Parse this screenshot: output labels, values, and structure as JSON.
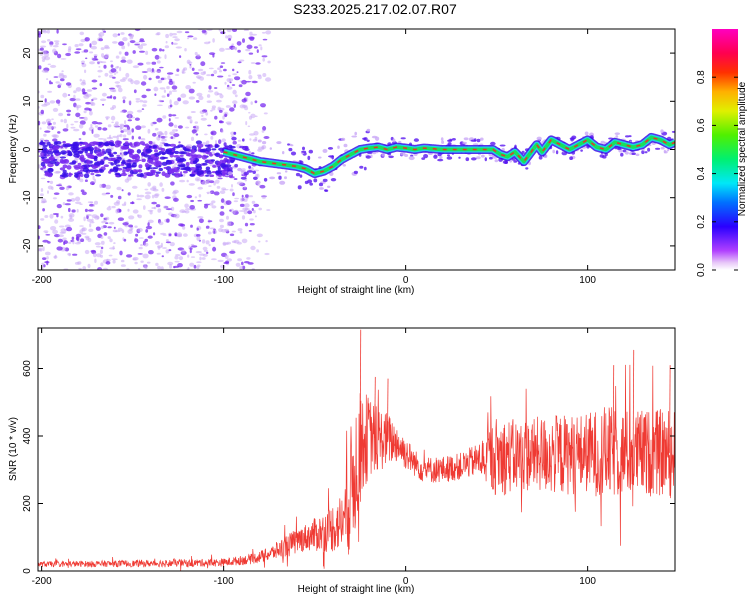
{
  "page": {
    "title": "S233.2025.217.02.07.R07"
  },
  "colors": {
    "snr_line": "#ef3a33",
    "ridge_core": "#e8312a",
    "ridge_mid": "#18e05a",
    "ridge_edge": "#1fd0e8",
    "speckle": "#7a2cf0",
    "speckle_light": "#c9a8f6"
  },
  "colorbar": {
    "label": "Normalized spectral amplitude",
    "ticks": [
      "0.0",
      "0.2",
      "0.4",
      "0.6",
      "0.8"
    ],
    "tick_values": [
      0.0,
      0.2,
      0.4,
      0.6,
      0.8
    ],
    "range": [
      0,
      1
    ],
    "colormap": "hsv (magenta-blue-cyan-green-yellow-red-pink)"
  },
  "chart_data": [
    {
      "type": "heatmap",
      "title": "S233.2025.217.02.07.R07",
      "xlabel": "Height of straight line (km)",
      "ylabel": "Frequency (Hz)",
      "xlim": [
        -202,
        148
      ],
      "ylim": [
        -25,
        25
      ],
      "xticks": [
        -200,
        -100,
        0,
        100
      ],
      "xtick_labels": [
        "-200",
        "-100",
        "0",
        "100"
      ],
      "yticks": [
        -20,
        -10,
        0,
        10,
        20
      ],
      "ytick_labels": [
        "-20",
        "-10",
        "0",
        "10",
        "20"
      ],
      "ridge": {
        "x": [
          -100,
          -90,
          -80,
          -70,
          -60,
          -55,
          -50,
          -45,
          -40,
          -35,
          -30,
          -25,
          -20,
          -15,
          -10,
          -5,
          0,
          5,
          10,
          20,
          30,
          40,
          48,
          52,
          56,
          60,
          65,
          68,
          72,
          75,
          80,
          85,
          90,
          95,
          100,
          105,
          110,
          115,
          120,
          125,
          130,
          135,
          140,
          145,
          148
        ],
        "y": [
          -0.5,
          -1.5,
          -2.5,
          -3.0,
          -3.5,
          -4.0,
          -5.0,
          -4.5,
          -3.5,
          -2.0,
          -1.0,
          0.0,
          0.3,
          0.5,
          0.0,
          0.5,
          0.3,
          0.0,
          0.3,
          0.0,
          0.0,
          0.0,
          0.0,
          -1.0,
          -1.5,
          -0.5,
          -2.5,
          -1.0,
          1.0,
          -0.5,
          2.0,
          1.0,
          0.0,
          1.0,
          2.0,
          0.5,
          0.0,
          1.5,
          1.0,
          0.5,
          1.0,
          2.5,
          2.0,
          1.0,
          1.5
        ]
      },
      "scatter_region_x": [
        -202,
        -75
      ],
      "scatter_region_y": [
        -25,
        25
      ],
      "scatter_band_center_y": -2
    },
    {
      "type": "line",
      "xlabel": "Height of straight line (km)",
      "ylabel": "SNR (10 * v/v)",
      "xlim": [
        -202,
        148
      ],
      "ylim": [
        0,
        720
      ],
      "xticks": [
        -200,
        -100,
        0,
        100
      ],
      "xtick_labels": [
        "-200",
        "-100",
        "0",
        "100"
      ],
      "yticks": [
        0,
        200,
        400,
        600
      ],
      "ytick_labels": [
        "0",
        "200",
        "400",
        "600"
      ],
      "series": [
        {
          "envelope_x": [
            -202,
            -150,
            -100,
            -85,
            -75,
            -65,
            -55,
            -45,
            -38,
            -34,
            -31,
            -28,
            -24,
            -20,
            -15,
            -10,
            -5,
            0,
            5,
            10,
            20,
            30,
            40,
            50,
            60,
            70,
            80,
            90,
            100,
            110,
            120,
            130,
            140,
            148
          ],
          "envelope_mean": [
            20,
            22,
            25,
            35,
            50,
            75,
            100,
            115,
            135,
            150,
            220,
            300,
            380,
            400,
            390,
            390,
            380,
            350,
            320,
            300,
            300,
            310,
            330,
            340,
            340,
            345,
            345,
            345,
            350,
            350,
            350,
            350,
            350,
            350
          ],
          "envelope_amplitude": [
            8,
            10,
            12,
            15,
            20,
            35,
            40,
            60,
            80,
            90,
            180,
            200,
            160,
            120,
            100,
            80,
            60,
            50,
            40,
            40,
            40,
            40,
            50,
            120,
            110,
            110,
            120,
            120,
            120,
            140,
            130,
            130,
            130,
            130
          ],
          "peak_values": [
            [
              -25,
              715
            ],
            [
              -17,
              575
            ],
            [
              -10,
              570
            ],
            [
              114,
              610
            ],
            [
              125,
              655
            ],
            [
              145,
              610
            ]
          ]
        }
      ]
    }
  ],
  "labels": {
    "top_xlabel": "Height of straight line (km)",
    "top_ylabel": "Frequency (Hz)",
    "bottom_xlabel": "Height of straight line (km)",
    "bottom_ylabel": "SNR (10 * v/v)"
  }
}
